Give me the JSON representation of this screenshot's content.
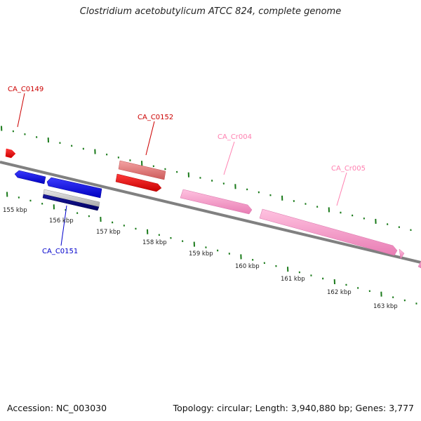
{
  "title": "Clostridium acetobutylicum ATCC 824, complete genome",
  "footer": {
    "accession": "Accession: NC_003030",
    "summary": "Topology: circular; Length: 3,940,880 bp; Genes: 3,777"
  },
  "colors": {
    "backbone": "#808080",
    "tick": "#1a7a1a",
    "gene_red": "#ff0000",
    "gene_light_red": "#e87878",
    "gene_blue": "#0000ff",
    "gene_navy": "#000080",
    "gene_gray": "#c0c0c0",
    "gene_pink": "#ff99cc"
  },
  "scale_labels": [
    "155 kbp",
    "156 kbp",
    "157 kbp",
    "158 kbp",
    "159 kbp",
    "160 kbp",
    "161 kbp",
    "162 kbp",
    "163 kbp"
  ],
  "gene_labels": {
    "ca_c0149": "CA_C0149",
    "ca_c0152": "CA_C0152",
    "ca_cr004": "CA_Cr004",
    "ca_cr005": "CA_Cr005",
    "ca_c0151": "CA_C0151"
  }
}
